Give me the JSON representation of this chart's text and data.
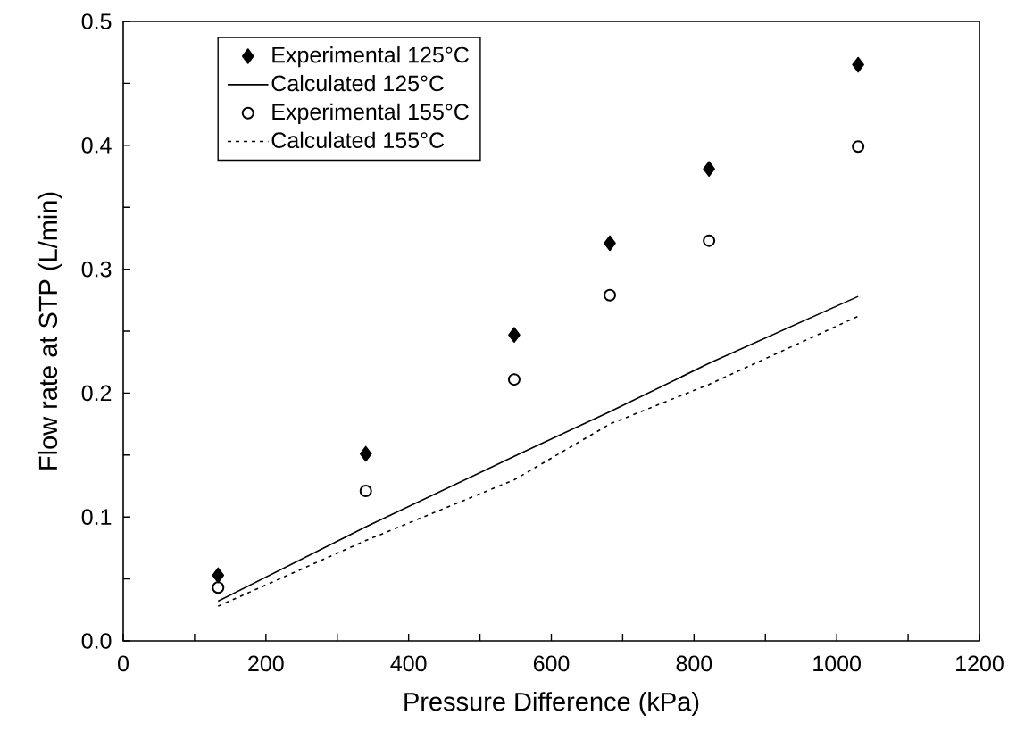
{
  "chart_data": {
    "type": "scatter",
    "xlabel": "Pressure Difference (kPa)",
    "ylabel": "Flow rate at STP (L/min)",
    "x": [
      133,
      340,
      548,
      682,
      821,
      1030
    ],
    "series": [
      {
        "name": "Experimental 125°C",
        "type": "scatter",
        "marker": "diamond",
        "color": "#000000",
        "values": [
          0.053,
          0.151,
          0.247,
          0.321,
          0.381,
          0.465
        ]
      },
      {
        "name": "Calculated 125°C",
        "type": "line",
        "marker": "none",
        "line_style": "solid",
        "color": "#000000",
        "values": [
          0.032,
          0.092,
          0.149,
          0.185,
          0.224,
          0.278
        ]
      },
      {
        "name": "Experimental 155°C",
        "type": "scatter",
        "marker": "circle",
        "color": "#000000",
        "values": [
          0.043,
          0.121,
          0.211,
          0.279,
          0.323,
          0.399
        ]
      },
      {
        "name": "Calculated 155°C",
        "type": "line",
        "marker": "none",
        "line_style": "dashed",
        "color": "#000000",
        "values": [
          0.028,
          0.081,
          0.13,
          0.175,
          0.207,
          0.262
        ]
      }
    ],
    "xlim": [
      0,
      1200
    ],
    "ylim": [
      0,
      0.5
    ],
    "xticks": [
      0,
      {
        "value": 100,
        "label": null
      },
      200,
      {
        "value": 300,
        "label": null
      },
      400,
      {
        "value": 500,
        "label": null
      },
      600,
      {
        "value": 700,
        "label": null
      },
      800,
      {
        "value": 900,
        "label": null
      },
      1000,
      {
        "value": 1100,
        "label": null
      },
      1200
    ],
    "yticks": [
      {
        "value": 0,
        "label": "0.0"
      },
      {
        "value": 0.05,
        "label": null
      },
      0.1,
      {
        "value": 0.15,
        "label": null
      },
      0.2,
      {
        "value": 0.25,
        "label": null
      },
      0.3,
      {
        "value": 0.35,
        "label": null
      },
      0.4,
      {
        "value": 0.45,
        "label": null
      },
      0.5
    ],
    "legend": "top left"
  }
}
